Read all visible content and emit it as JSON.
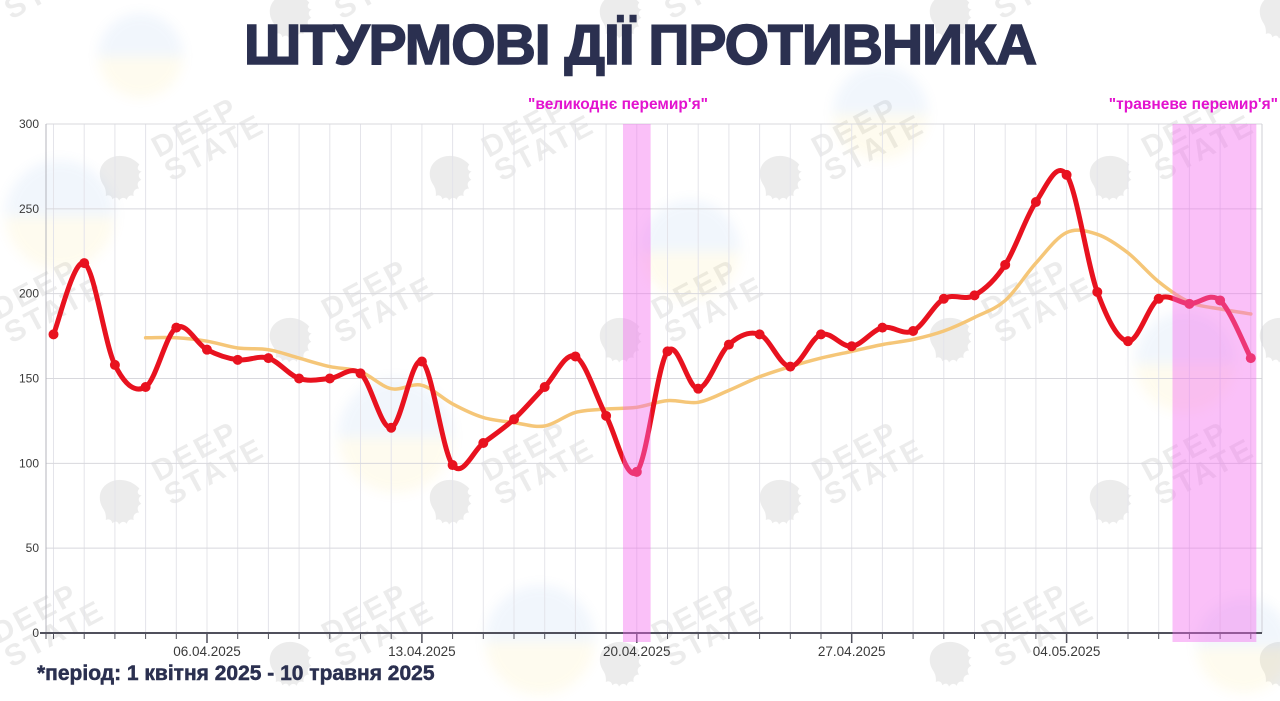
{
  "title": {
    "text": "ШТУРМОВІ ДІЇ ПРОТИВНИКА"
  },
  "footnote": "*період: 1 квітня 2025 - 10 травня 2025",
  "watermark": {
    "line1": "DEEP",
    "line2": "STATE"
  },
  "colors": {
    "title_text": "#2b3050",
    "daily_line": "#e8121f",
    "average_line": "#f5c678",
    "truce_band_fill": "#f26aee",
    "truce_label_text": "#e312cf",
    "axis_text": "#3a3a3a"
  },
  "chart_data": {
    "type": "line",
    "title": "ШТУРМОВІ ДІЇ ПРОТИВНИКА",
    "xlabel": "",
    "ylabel": "",
    "ylim": [
      0,
      300
    ],
    "yticks": [
      0,
      50,
      100,
      150,
      200,
      250,
      300
    ],
    "grid": "daily vertical lines, horizontal every 50",
    "x_tick_labels": [
      {
        "day": 5,
        "label": "06.04.2025"
      },
      {
        "day": 12,
        "label": "13.04.2025"
      },
      {
        "day": 19,
        "label": "20.04.2025"
      },
      {
        "day": 26,
        "label": "27.04.2025"
      },
      {
        "day": 33,
        "label": "04.05.2025"
      }
    ],
    "series": [
      {
        "name": "assault_actions_daily",
        "color": "#e8121f",
        "marker": true,
        "start_day": 0,
        "values": [
          176,
          218,
          158,
          145,
          180,
          167,
          161,
          162,
          150,
          150,
          153,
          121,
          160,
          99,
          112,
          126,
          145,
          163,
          128,
          95,
          166,
          144,
          170,
          176,
          157,
          176,
          169,
          180,
          178,
          197,
          199,
          217,
          254,
          270,
          201,
          172,
          197,
          194,
          196,
          162
        ]
      },
      {
        "name": "moving_average",
        "color": "#f5c678",
        "marker": false,
        "start_day": 3,
        "values": [
          174,
          174,
          172,
          168,
          167,
          162,
          157,
          154,
          144,
          146,
          135,
          127,
          124,
          122,
          130,
          132,
          133,
          137,
          136,
          143,
          151,
          157,
          162,
          166,
          170,
          173,
          178,
          186,
          196,
          218,
          236,
          235,
          224,
          207,
          195,
          191,
          188
        ]
      }
    ],
    "bands": [
      {
        "label": "\"великоднє перемир'я\"",
        "day_from": 18.55,
        "day_to": 19.45
      },
      {
        "label": "\"травневе перемир'я\"",
        "day_from": 36.45,
        "day_to": 39.18
      }
    ]
  }
}
